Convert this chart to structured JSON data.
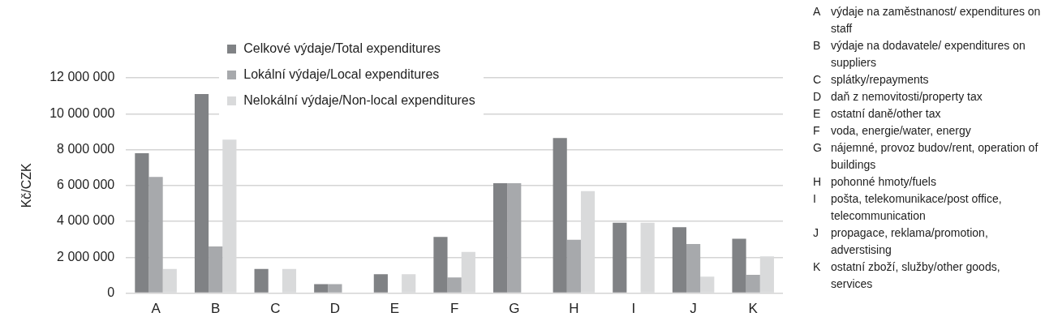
{
  "chart_data": {
    "type": "bar",
    "ylabel": "Kč/CZK",
    "categories": [
      "A",
      "B",
      "C",
      "D",
      "E",
      "F",
      "G",
      "H",
      "I",
      "J",
      "K"
    ],
    "series": [
      {
        "name": "Celkové výdaje/Total expenditures",
        "color": "#808285",
        "values": [
          7800000,
          11100000,
          1350000,
          500000,
          1050000,
          3130000,
          6130000,
          8640000,
          3920000,
          3670000,
          3030000
        ]
      },
      {
        "name": "Lokální výdaje/Local expenditures",
        "color": "#a7a9ac",
        "values": [
          6480000,
          2600000,
          0,
          500000,
          0,
          870000,
          6130000,
          2980000,
          0,
          2740000,
          1020000
        ]
      },
      {
        "name": "Nelokální výdaje/Non-local expenditures",
        "color": "#d9dadb",
        "values": [
          1350000,
          8550000,
          1350000,
          0,
          1050000,
          2300000,
          0,
          5690000,
          3920000,
          920000,
          2050000
        ]
      }
    ],
    "ylim": [
      0,
      12000000
    ],
    "yticks": [
      {
        "value": 0,
        "label": "0"
      },
      {
        "value": 2000000,
        "label": "2 000 000"
      },
      {
        "value": 4000000,
        "label": "4 000 000"
      },
      {
        "value": 6000000,
        "label": "6 000 000"
      },
      {
        "value": 8000000,
        "label": "8 000 000"
      },
      {
        "value": 10000000,
        "label": "10 000 000"
      },
      {
        "value": 12000000,
        "label": "12 000 000"
      }
    ],
    "grid": "y",
    "legend": "top left",
    "annotations": [
      "A výdaje na zaměstnanost/ expenditures on staff",
      "B výdaje na dodavatele/ expenditures on suppliers",
      "C splátky/repayments",
      "D daň z nemovitosti/property tax",
      "E ostatní daně/other tax",
      "F voda, energie/water, energy",
      "G nájemné, provoz budov/rent, operation of buildings",
      "H pohonné hmoty/fuels",
      "I pošta, telekomunikace/post office, telecommunication",
      "J propagace, reklama/promotion, adverstising",
      "K ostatní zboží, služby/other goods, services"
    ]
  }
}
